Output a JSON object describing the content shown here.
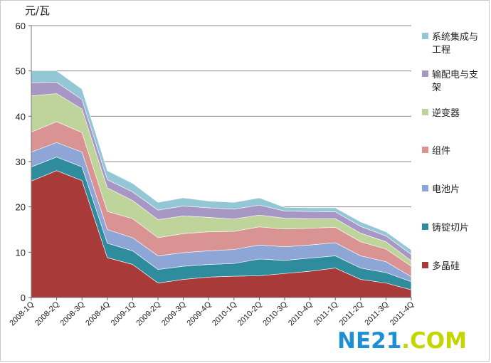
{
  "watermark": {
    "part1": "NE21",
    "part2": ".COM"
  },
  "chart_data": {
    "type": "area",
    "stacked": true,
    "title": "",
    "ylabel": "元/瓦",
    "xlabel": "",
    "ylim": [
      0,
      60
    ],
    "yticks": [
      0,
      10,
      20,
      30,
      40,
      50,
      60
    ],
    "grid": true,
    "legend_position": "right",
    "categories": [
      "2008-1Q",
      "2008-2Q",
      "2008-3Q",
      "2008-4Q",
      "2009-1Q",
      "2009-2Q",
      "2009-3Q",
      "2009-4Q",
      "2010-1Q",
      "2010-2Q",
      "2010-3Q",
      "2010-4Q",
      "2011-1Q",
      "2011-2Q",
      "2011-3Q",
      "2011-4Q"
    ],
    "series": [
      {
        "name": "多晶硅",
        "color": "#a93a3a",
        "values": [
          25.7,
          28.0,
          25.8,
          8.8,
          7.3,
          3.2,
          4.0,
          4.5,
          4.7,
          4.8,
          5.3,
          5.8,
          6.5,
          4.0,
          3.2,
          1.7
        ]
      },
      {
        "name": "铸锭切片",
        "color": "#2f8c9c",
        "values": [
          3.1,
          3.0,
          3.0,
          3.2,
          3.0,
          3.0,
          2.9,
          2.8,
          2.8,
          3.7,
          2.9,
          2.9,
          2.7,
          2.5,
          2.3,
          1.8
        ]
      },
      {
        "name": "电池片",
        "color": "#8ea6d6",
        "values": [
          3.3,
          3.2,
          3.3,
          3.0,
          2.9,
          3.0,
          3.0,
          3.0,
          3.1,
          3.1,
          3.0,
          2.9,
          2.9,
          2.7,
          2.4,
          1.1
        ]
      },
      {
        "name": "组件",
        "color": "#d99392",
        "values": [
          4.4,
          4.6,
          4.3,
          4.0,
          4.2,
          4.0,
          4.2,
          4.2,
          4.0,
          4.0,
          3.9,
          3.7,
          3.4,
          3.1,
          2.8,
          2.3
        ]
      },
      {
        "name": "逆变器",
        "color": "#bfd49a",
        "values": [
          8.0,
          6.2,
          5.2,
          5.2,
          4.0,
          4.0,
          3.9,
          3.2,
          2.7,
          2.6,
          2.4,
          2.1,
          1.9,
          1.9,
          1.6,
          1.2
        ]
      },
      {
        "name": "输配电与支架",
        "color": "#a797c4",
        "values": [
          2.9,
          2.5,
          2.1,
          1.8,
          1.9,
          2.1,
          2.2,
          2.1,
          2.2,
          2.2,
          1.6,
          1.6,
          1.5,
          1.5,
          1.3,
          1.4
        ]
      },
      {
        "name": "系统集成与工程",
        "color": "#93c7d6",
        "values": [
          2.6,
          2.5,
          2.3,
          2.0,
          1.9,
          1.7,
          1.8,
          1.5,
          1.5,
          1.6,
          0.8,
          0.8,
          0.9,
          1.0,
          0.9,
          1.0
        ]
      }
    ],
    "legend_order": [
      "系统集成与工程",
      "输配电与支架",
      "逆变器",
      "组件",
      "电池片",
      "铸锭切片",
      "多晶硅"
    ],
    "legend_display": {
      "系统集成与工程": [
        "系统集成与",
        "工程"
      ],
      "输配电与支架": [
        "输配电与支",
        "架"
      ],
      "逆变器": [
        "逆变器"
      ],
      "组件": [
        "组件"
      ],
      "电池片": [
        "电池片"
      ],
      "铸锭切片": [
        "铸锭切片"
      ],
      "多晶硅": [
        "多晶硅"
      ]
    }
  }
}
